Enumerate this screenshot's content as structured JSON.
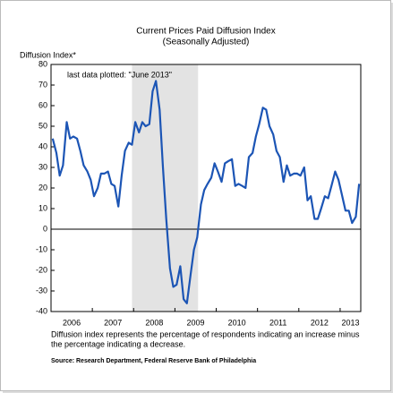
{
  "chart_data": {
    "type": "line",
    "title": "Current Prices Paid Diffusion Index",
    "subtitle": "(Seasonally Adjusted)",
    "y_label": "Diffusion Index*",
    "annotation": "last data plotted: \"June 2013\"",
    "footnote": [
      "Diffusion index represents the percentage of respondents indicating an increase minus",
      "the percentage indicating a decrease."
    ],
    "source": "Source: Research Department, Federal Reserve Bank of Philadelphia",
    "color": "#1c55b5",
    "shaded": [
      2007.96,
      2009.56
    ],
    "xlim": [
      2006,
      2013.5
    ],
    "xticks": [
      {
        "value": 2006,
        "label": "2006"
      },
      {
        "value": 2007,
        "label": "2007"
      },
      {
        "value": 2008,
        "label": "2008"
      },
      {
        "value": 2009,
        "label": "2009"
      },
      {
        "value": 2010,
        "label": "2010"
      },
      {
        "value": 2011,
        "label": "2011"
      },
      {
        "value": 2012,
        "label": "2012"
      },
      {
        "value": 2013,
        "label": "2013"
      }
    ],
    "ylim": [
      -40,
      80
    ],
    "yticks": [
      -40,
      -30,
      -20,
      -10,
      0,
      10,
      20,
      30,
      40,
      50,
      60,
      70,
      80
    ],
    "x": [
      2006.04,
      2006.13,
      2006.21,
      2006.29,
      2006.38,
      2006.46,
      2006.54,
      2006.63,
      2006.71,
      2006.79,
      2006.88,
      2006.96,
      2007.04,
      2007.13,
      2007.21,
      2007.29,
      2007.38,
      2007.46,
      2007.54,
      2007.63,
      2007.71,
      2007.79,
      2007.88,
      2007.96,
      2008.04,
      2008.13,
      2008.21,
      2008.29,
      2008.38,
      2008.46,
      2008.54,
      2008.63,
      2008.71,
      2008.79,
      2008.88,
      2008.96,
      2009.04,
      2009.13,
      2009.21,
      2009.29,
      2009.38,
      2009.46,
      2009.54,
      2009.63,
      2009.71,
      2009.79,
      2009.88,
      2009.96,
      2010.04,
      2010.13,
      2010.21,
      2010.29,
      2010.38,
      2010.46,
      2010.54,
      2010.63,
      2010.71,
      2010.79,
      2010.88,
      2010.96,
      2011.04,
      2011.13,
      2011.21,
      2011.29,
      2011.38,
      2011.46,
      2011.54,
      2011.63,
      2011.71,
      2011.79,
      2011.88,
      2011.96,
      2012.04,
      2012.13,
      2012.21,
      2012.29,
      2012.38,
      2012.46,
      2012.54,
      2012.63,
      2012.71,
      2012.79,
      2012.88,
      2012.96,
      2013.04,
      2013.13,
      2013.21,
      2013.29,
      2013.38,
      2013.46
    ],
    "values": [
      44,
      37,
      26,
      31,
      52,
      44,
      45,
      44,
      38,
      31,
      28,
      24,
      16,
      20,
      27,
      27,
      28,
      22,
      21,
      11,
      26,
      38,
      42,
      41,
      52,
      47,
      52,
      50,
      51,
      67,
      72,
      58,
      30,
      5,
      -19,
      -28,
      -27,
      -18,
      -34,
      -36,
      -22,
      -10,
      -4,
      12,
      19,
      22,
      25,
      32,
      28,
      23,
      32,
      33,
      34,
      21,
      22,
      21,
      20,
      35,
      37,
      45,
      51,
      59,
      58,
      50,
      46,
      38,
      35,
      23,
      31,
      26,
      27,
      27,
      26,
      30,
      14,
      16,
      5,
      5,
      10,
      16,
      15,
      21,
      28,
      24,
      17,
      9,
      9,
      3,
      6,
      22
    ]
  }
}
